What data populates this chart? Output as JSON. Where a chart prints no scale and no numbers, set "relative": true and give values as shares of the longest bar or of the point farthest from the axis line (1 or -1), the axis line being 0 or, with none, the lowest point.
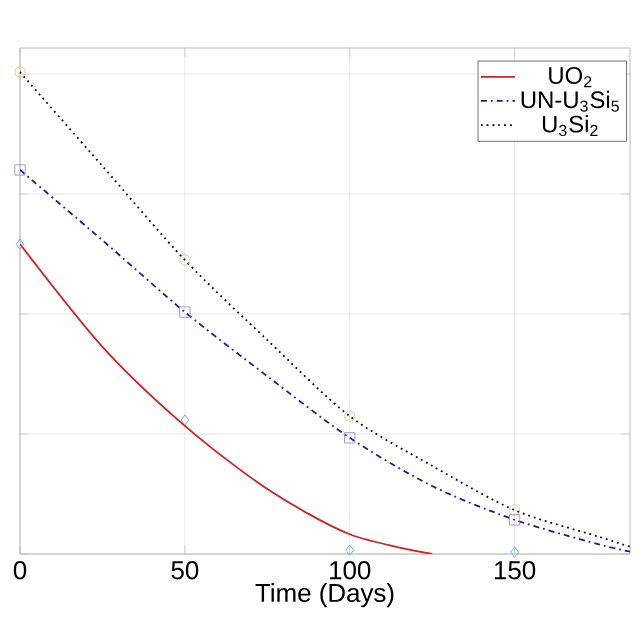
{
  "chart_data": {
    "type": "line",
    "relative": true,
    "xlabel": "Time (Days)",
    "xlim": [
      0,
      185
    ],
    "xticks": [
      0,
      50,
      100,
      150
    ],
    "grid": true,
    "legend": "top right",
    "tick_labels": "x",
    "series": [
      {
        "name": "UO$_{2}$",
        "color": "#d42020",
        "line_style": "solid",
        "x": [
          0,
          25,
          50,
          75,
          100,
          125
        ],
        "values": [
          0.643,
          0.43,
          0.266,
          0.135,
          0.041,
          0
        ]
      },
      {
        "name": "UN-U$_{3}$Si$_{5}$",
        "color": "#1c1c9c",
        "line_style": "dashdot",
        "x": [
          0,
          25,
          50,
          75,
          100,
          125,
          150,
          175,
          185
        ],
        "values": [
          0.797,
          0.651,
          0.502,
          0.369,
          0.241,
          0.141,
          0.071,
          0.021,
          0.005
        ]
      },
      {
        "name": "U$_{3}$Si$_{2}$",
        "color": "#000000",
        "line_style": "dotted",
        "x": [
          0,
          25,
          50,
          75,
          100,
          125,
          150,
          175,
          185
        ],
        "values": [
          1,
          0.805,
          0.61,
          0.444,
          0.286,
          0.183,
          0.091,
          0.037,
          0.015
        ]
      },
      {
        "type": "scatter",
        "marker": "diamond",
        "color": "#5aa9c8",
        "x": [
          0,
          50,
          100,
          150
        ],
        "values": [
          0.643,
          0.278,
          0.008,
          0.004
        ]
      },
      {
        "type": "scatter",
        "marker": "square",
        "color": "#9a7fc9",
        "x": [
          0,
          50,
          100,
          150
        ],
        "values": [
          0.797,
          0.502,
          0.241,
          0.071
        ]
      },
      {
        "type": "scatter",
        "marker": "circle",
        "color": "#e0c870",
        "x": [
          0,
          50,
          100,
          150
        ],
        "values": [
          1,
          0.61,
          0.286,
          0.091
        ]
      }
    ]
  }
}
